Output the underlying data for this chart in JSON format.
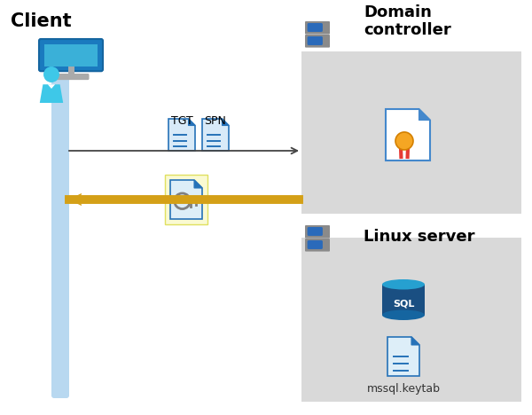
{
  "bg_color": "#ffffff",
  "client_label": "Client",
  "domain_label": "Domain\ncontroller",
  "linux_label": "Linux server",
  "tgt_label": "TGT",
  "spn_label": "SPN",
  "keytab_label": "mssql.keytab",
  "client_bar_color": "#b8d8f0",
  "domain_box_color": "#d9d9d9",
  "linux_box_color": "#d9d9d9",
  "key_box_color": "#fafad2",
  "arrow1_color": "#444444",
  "arrow2_color": "#d4a017",
  "doc_blue_edge": "#2672b8",
  "doc_blue_fill": "#d8eaf8",
  "doc_white_fill": "#ffffff",
  "sql_dark": "#1a4f82",
  "sql_mid": "#1565a0",
  "sql_light": "#26a0d0",
  "server_body": "#8a8a8a",
  "server_dark": "#5a5a5a",
  "server_slot": "#2a6aba"
}
